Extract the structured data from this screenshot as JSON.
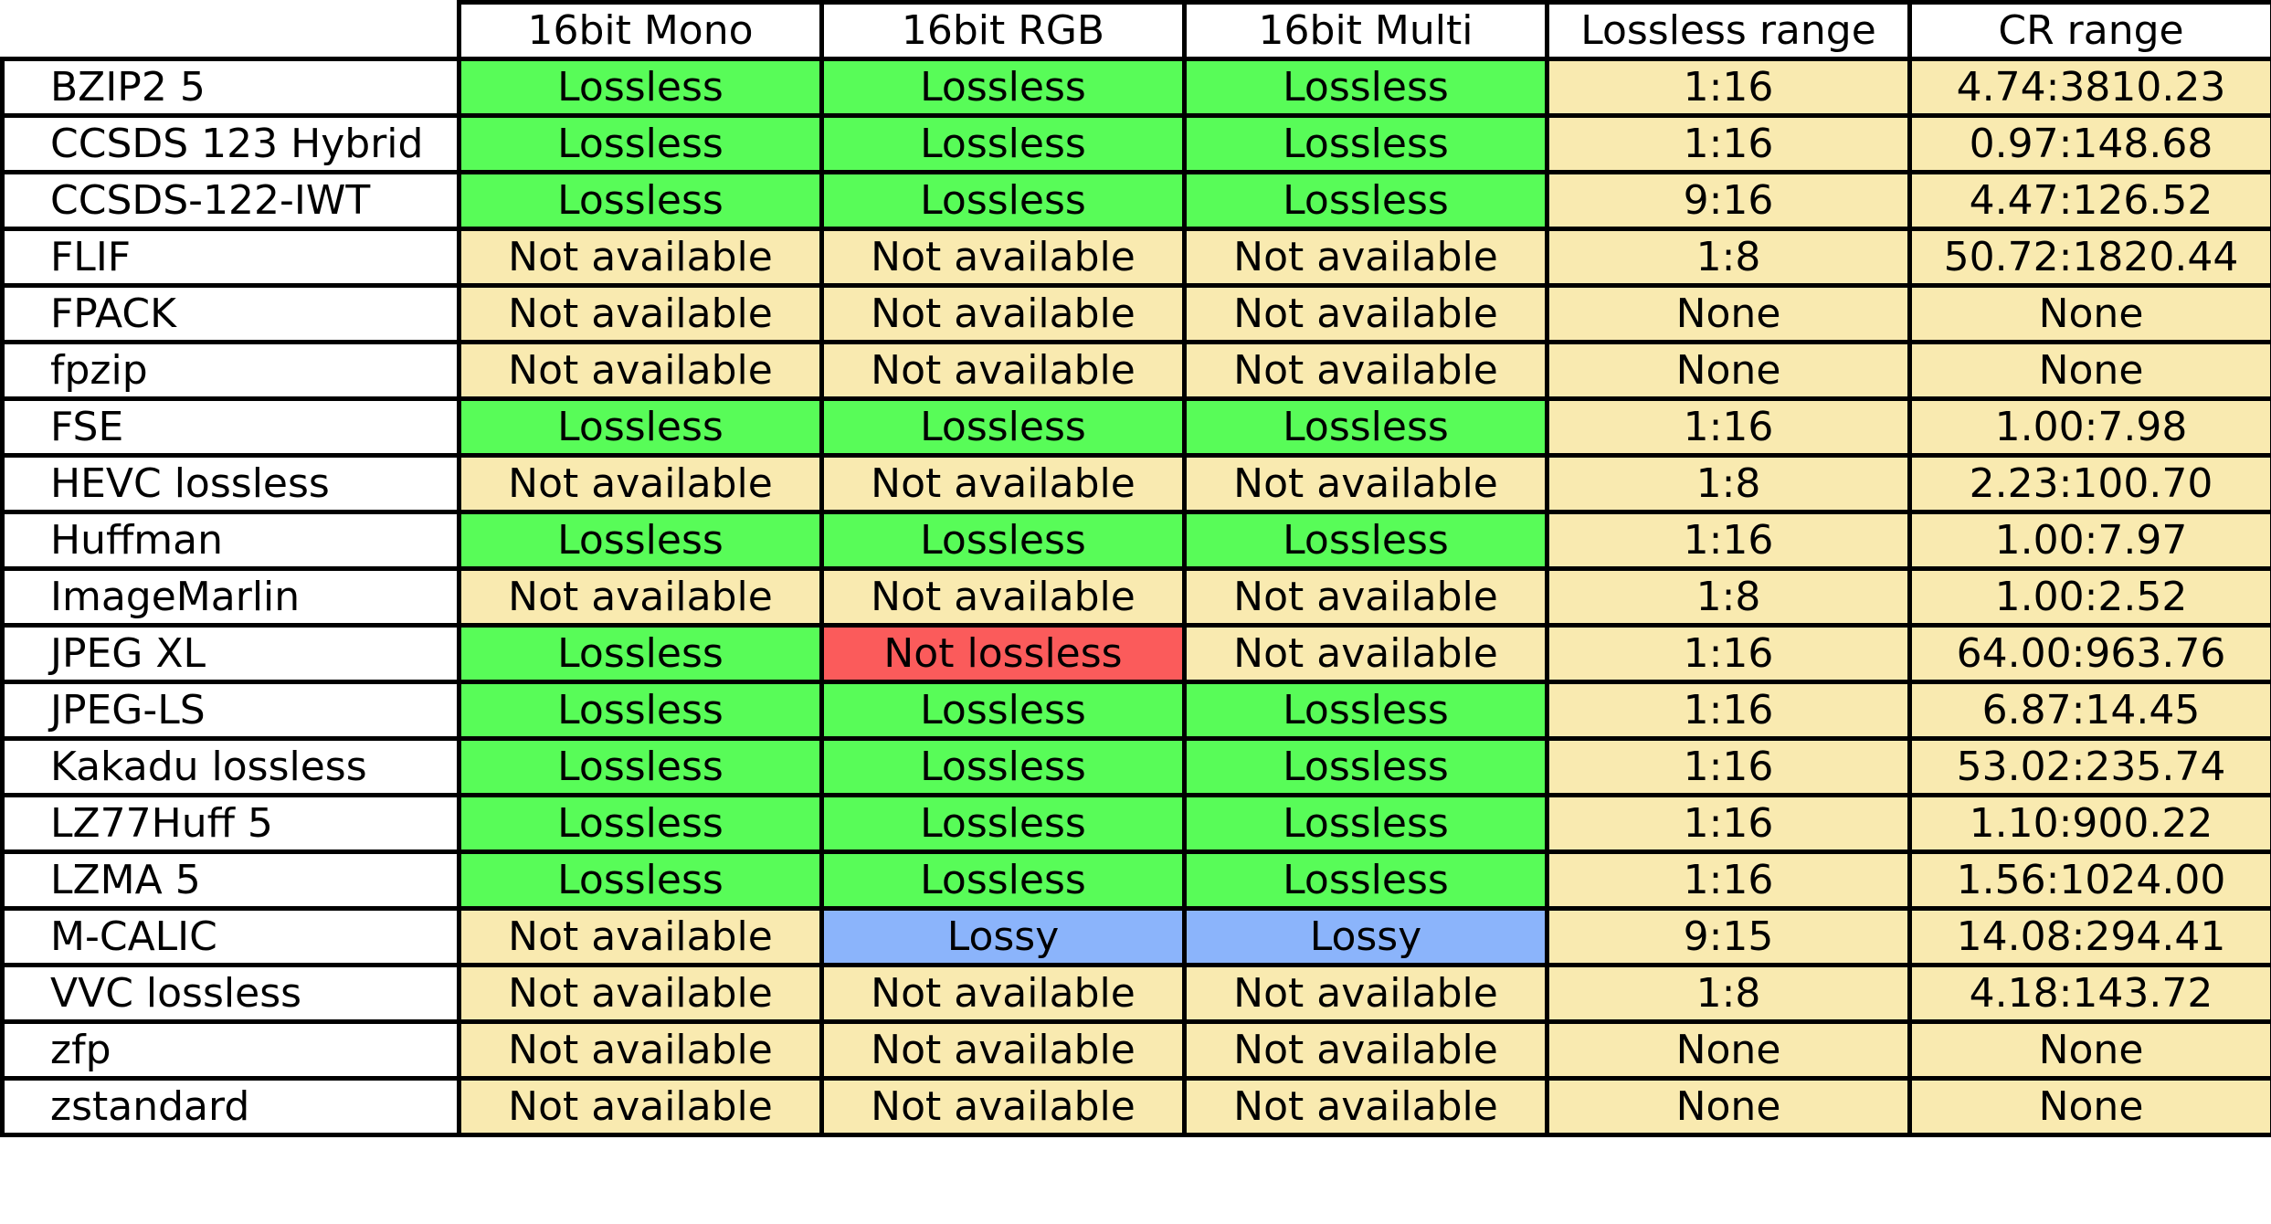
{
  "table": {
    "headers": [
      "16bit Mono",
      "16bit RGB",
      "16bit Multi",
      "Lossless range",
      "CR range"
    ],
    "colors": {
      "Lossless": "#58fc58",
      "Not available": "#f9eab0",
      "Not lossless": "#fb5b5b",
      "Lossy": "#8bb4fb",
      "range": "#f9eab0"
    },
    "rows": [
      {
        "name": "BZIP2 5",
        "mono": "Lossless",
        "rgb": "Lossless",
        "multi": "Lossless",
        "lossless_range": "1:16",
        "cr_range": "4.74:3810.23"
      },
      {
        "name": "CCSDS 123 Hybrid",
        "mono": "Lossless",
        "rgb": "Lossless",
        "multi": "Lossless",
        "lossless_range": "1:16",
        "cr_range": "0.97:148.68"
      },
      {
        "name": "CCSDS-122-IWT",
        "mono": "Lossless",
        "rgb": "Lossless",
        "multi": "Lossless",
        "lossless_range": "9:16",
        "cr_range": "4.47:126.52"
      },
      {
        "name": "FLIF",
        "mono": "Not available",
        "rgb": "Not available",
        "multi": "Not available",
        "lossless_range": "1:8",
        "cr_range": "50.72:1820.44"
      },
      {
        "name": "FPACK",
        "mono": "Not available",
        "rgb": "Not available",
        "multi": "Not available",
        "lossless_range": "None",
        "cr_range": "None"
      },
      {
        "name": "fpzip",
        "mono": "Not available",
        "rgb": "Not available",
        "multi": "Not available",
        "lossless_range": "None",
        "cr_range": "None"
      },
      {
        "name": "FSE",
        "mono": "Lossless",
        "rgb": "Lossless",
        "multi": "Lossless",
        "lossless_range": "1:16",
        "cr_range": "1.00:7.98"
      },
      {
        "name": "HEVC lossless",
        "mono": "Not available",
        "rgb": "Not available",
        "multi": "Not available",
        "lossless_range": "1:8",
        "cr_range": "2.23:100.70"
      },
      {
        "name": "Huffman",
        "mono": "Lossless",
        "rgb": "Lossless",
        "multi": "Lossless",
        "lossless_range": "1:16",
        "cr_range": "1.00:7.97"
      },
      {
        "name": "ImageMarlin",
        "mono": "Not available",
        "rgb": "Not available",
        "multi": "Not available",
        "lossless_range": "1:8",
        "cr_range": "1.00:2.52"
      },
      {
        "name": "JPEG XL",
        "mono": "Lossless",
        "rgb": "Not lossless",
        "multi": "Not available",
        "lossless_range": "1:16",
        "cr_range": "64.00:963.76"
      },
      {
        "name": "JPEG-LS",
        "mono": "Lossless",
        "rgb": "Lossless",
        "multi": "Lossless",
        "lossless_range": "1:16",
        "cr_range": "6.87:14.45"
      },
      {
        "name": "Kakadu  lossless",
        "mono": "Lossless",
        "rgb": "Lossless",
        "multi": "Lossless",
        "lossless_range": "1:16",
        "cr_range": "53.02:235.74"
      },
      {
        "name": "LZ77Huff 5",
        "mono": "Lossless",
        "rgb": "Lossless",
        "multi": "Lossless",
        "lossless_range": "1:16",
        "cr_range": "1.10:900.22"
      },
      {
        "name": "LZMA 5",
        "mono": "Lossless",
        "rgb": "Lossless",
        "multi": "Lossless",
        "lossless_range": "1:16",
        "cr_range": "1.56:1024.00"
      },
      {
        "name": "M-CALIC",
        "mono": "Not available",
        "rgb": "Lossy",
        "multi": "Lossy",
        "lossless_range": "9:15",
        "cr_range": "14.08:294.41"
      },
      {
        "name": "VVC lossless",
        "mono": "Not available",
        "rgb": "Not available",
        "multi": "Not available",
        "lossless_range": "1:8",
        "cr_range": "4.18:143.72"
      },
      {
        "name": "zfp",
        "mono": "Not available",
        "rgb": "Not available",
        "multi": "Not available",
        "lossless_range": "None",
        "cr_range": "None"
      },
      {
        "name": "zstandard",
        "mono": "Not available",
        "rgb": "Not available",
        "multi": "Not available",
        "lossless_range": "None",
        "cr_range": "None"
      }
    ]
  }
}
